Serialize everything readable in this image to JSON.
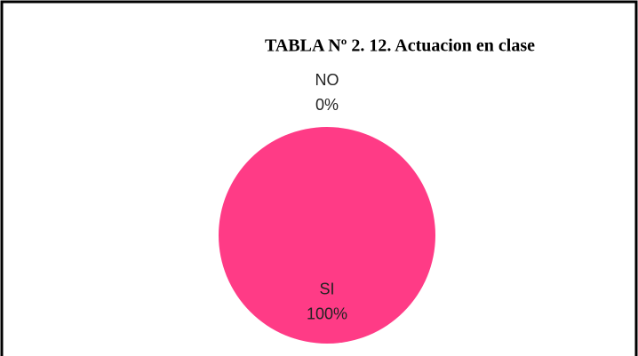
{
  "chart_data": {
    "type": "pie",
    "title": "TABLA Nº 2. 12. Actuacion en clase",
    "categories": [
      "SI",
      "NO"
    ],
    "values": [
      100,
      0
    ],
    "value_labels": [
      "100%",
      "0%"
    ],
    "colors": [
      "#ff3b86",
      "#c0504d"
    ]
  }
}
